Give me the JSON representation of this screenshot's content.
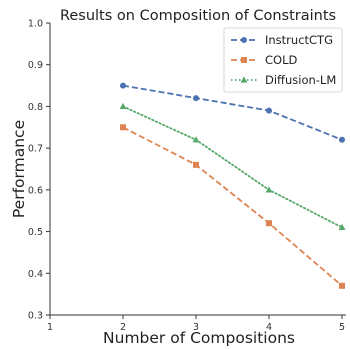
{
  "chart_data": {
    "type": "line",
    "title": "Results on Composition of Constraints",
    "xlabel": "Number of Compositions",
    "ylabel": "Performance",
    "x": [
      2,
      3,
      4,
      5
    ],
    "xlim": [
      1,
      5
    ],
    "ylim": [
      0.3,
      1.0
    ],
    "xticks": [
      "1",
      "2",
      "3",
      "4",
      "5"
    ],
    "yticks": [
      "0.3",
      "0.4",
      "0.5",
      "0.6",
      "0.7",
      "0.8",
      "0.9",
      "1.0"
    ],
    "grid": false,
    "legend_position": "top-right",
    "series": [
      {
        "name": "InstructCTG",
        "values": [
          0.85,
          0.82,
          0.79,
          0.72
        ],
        "color": "#4c72b0",
        "marker": "circle",
        "dash": "dashed"
      },
      {
        "name": "COLD",
        "values": [
          0.75,
          0.66,
          0.52,
          0.37
        ],
        "color": "#dd8452",
        "marker": "square",
        "dash": "dashed"
      },
      {
        "name": "Diffusion-LM",
        "values": [
          0.8,
          0.72,
          0.6,
          0.51
        ],
        "color": "#55a868",
        "marker": "triangle",
        "dash": "dotted"
      }
    ]
  }
}
